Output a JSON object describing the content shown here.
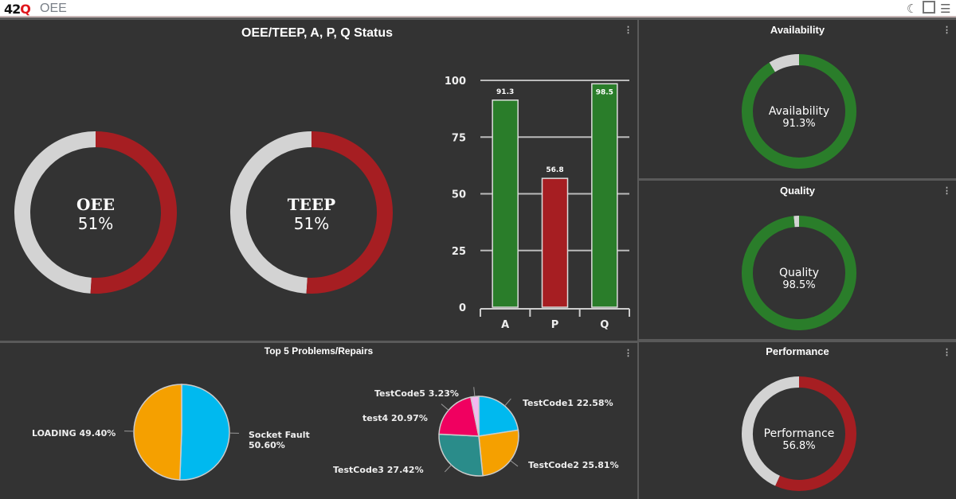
{
  "app": {
    "logo": "42Q",
    "title": "OEE",
    "icons": [
      "moon-icon",
      "fullscreen-icon",
      "menu-icon"
    ]
  },
  "colors": {
    "red": "#a61e22",
    "green": "#2a7d2a",
    "gray": "#d3d3d3",
    "panel": "#333333"
  },
  "status_panel": {
    "title": "OEE/TEEP, A, P, Q Status",
    "oee": {
      "label": "OEE",
      "value": "51%",
      "percent": 51
    },
    "teep": {
      "label": "TEEP",
      "value": "51%",
      "percent": 51
    },
    "chart_data": {
      "type": "bar",
      "categories": [
        "A",
        "P",
        "Q"
      ],
      "values": [
        91.3,
        56.8,
        98.5
      ],
      "data_labels": [
        "91.3",
        "56.8",
        "98.5"
      ],
      "colors": [
        "#2a7d2a",
        "#a61e22",
        "#2a7d2a"
      ],
      "ylim": [
        0,
        100
      ],
      "yticks": [
        "0",
        "25",
        "50",
        "75",
        "100"
      ],
      "grid": true
    }
  },
  "availability": {
    "title": "Availability",
    "label": "Availability",
    "value": "91.3%",
    "percent": 91.3
  },
  "quality": {
    "title": "Quality",
    "label": "Quality",
    "value": "98.5%",
    "percent": 98.5
  },
  "performance": {
    "title": "Performance",
    "label": "Performance",
    "value": "56.8%",
    "percent": 56.8
  },
  "problems": {
    "title": "Top 5 Problems/Repairs",
    "chart_data": [
      {
        "type": "pie",
        "slices": [
          {
            "label": "Socket Fault",
            "pct_label": "50.60%",
            "value": 50.6,
            "color": "#00b9ef"
          },
          {
            "label": "LOADING",
            "pct_label": "49.40%",
            "value": 49.4,
            "color": "#f5a000"
          }
        ]
      },
      {
        "type": "pie",
        "slices": [
          {
            "label": "TestCode1",
            "pct_label": "22.58%",
            "value": 22.58,
            "color": "#00b9ef"
          },
          {
            "label": "TestCode2",
            "pct_label": "25.81%",
            "value": 25.81,
            "color": "#f5a000"
          },
          {
            "label": "TestCode3",
            "pct_label": "27.42%",
            "value": 27.42,
            "color": "#2a8c8a"
          },
          {
            "label": "test4",
            "pct_label": "20.97%",
            "value": 20.97,
            "color": "#f00060"
          },
          {
            "label": "TestCode5",
            "pct_label": "3.23%",
            "value": 3.23,
            "color": "#f2b8f0"
          }
        ]
      }
    ]
  },
  "menu_glyph": "⋮"
}
